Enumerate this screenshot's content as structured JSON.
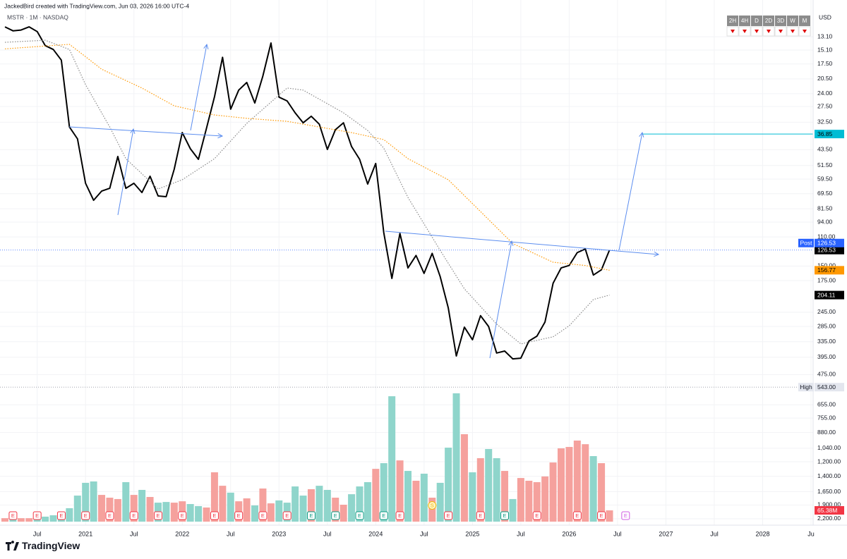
{
  "chart_data": {
    "type": "line",
    "header": "JackedBird created with TradingView.com, Jun 03, 2026 16:00 UTC-4",
    "symbol": "MSTR · 1M · NASDAQ",
    "currency": "USD",
    "brand": "TradingView",
    "timeframes": [
      "2H",
      "4H",
      "D",
      "2D",
      "3D",
      "W",
      "M"
    ],
    "x": [
      "2020-03",
      "2020-04",
      "2020-05",
      "2020-06",
      "2020-07",
      "2020-08",
      "2020-09",
      "2020-10",
      "2020-11",
      "2020-12",
      "2021-01",
      "2021-02",
      "2021-03",
      "2021-04",
      "2021-05",
      "2021-06",
      "2021-07",
      "2021-08",
      "2021-09",
      "2021-10",
      "2021-11",
      "2021-12",
      "2022-01",
      "2022-02",
      "2022-03",
      "2022-04",
      "2022-05",
      "2022-06",
      "2022-07",
      "2022-08",
      "2022-09",
      "2022-10",
      "2022-11",
      "2022-12",
      "2023-01",
      "2023-02",
      "2023-03",
      "2023-04",
      "2023-05",
      "2023-06",
      "2023-07",
      "2023-08",
      "2023-09",
      "2023-10",
      "2023-11",
      "2023-12",
      "2024-01",
      "2024-02",
      "2024-03",
      "2024-04",
      "2024-05",
      "2024-06",
      "2024-07",
      "2024-08",
      "2024-09",
      "2024-10",
      "2024-11",
      "2024-12",
      "2025-01",
      "2025-02",
      "2025-03",
      "2025-04",
      "2025-05",
      "2025-06",
      "2025-07",
      "2025-08",
      "2025-09",
      "2025-10",
      "2025-11",
      "2025-12",
      "2026-01",
      "2026-02",
      "2026-03",
      "2026-04",
      "2026-05",
      "2026-06"
    ],
    "series": [
      {
        "color": "#000000",
        "style": "solid",
        "values": [
          11.8,
          12.3,
          12.2,
          11.8,
          12.4,
          14.4,
          15.0,
          16.8,
          34.2,
          38.8,
          62.2,
          74.5,
          67.6,
          65.6,
          46.8,
          65.6,
          62.2,
          68.6,
          57.7,
          71.2,
          71.7,
          53.6,
          36.3,
          43.1,
          48.2,
          34.7,
          24.8,
          16.3,
          28.3,
          23.1,
          21.3,
          26.5,
          19.9,
          14.0,
          24.9,
          25.9,
          29.4,
          32.7,
          30.5,
          33.2,
          43.4,
          35.2,
          32.7,
          42.1,
          48.2,
          62.7,
          50.4,
          105,
          171,
          106,
          153,
          134,
          162,
          131,
          168,
          234,
          390,
          287,
          328,
          254,
          285,
          378,
          370,
          402,
          399,
          333,
          316,
          272,
          180,
          153,
          149,
          130,
          125,
          165,
          156,
          126.53
        ]
      },
      {
        "color": "#ff9800",
        "style": "dotted",
        "x": [
          "2020-03",
          "2020-11",
          "2021-01",
          "2021-03",
          "2021-08",
          "2021-12",
          "2022-05",
          "2022-09",
          "2023-02",
          "2023-06",
          "2023-10",
          "2024-02",
          "2024-05",
          "2024-10",
          "2025-02",
          "2025-06",
          "2025-11",
          "2026-03",
          "2026-06"
        ],
        "values": [
          14.9,
          14.2,
          16.2,
          18.5,
          22.6,
          27.3,
          30.1,
          31.2,
          32.2,
          34.2,
          36.3,
          39.1,
          47.9,
          59.9,
          84.0,
          118,
          144,
          149,
          156.77
        ]
      },
      {
        "color": "#8a8a8a",
        "style": "dotted",
        "x": [
          "2020-03",
          "2020-08",
          "2020-11",
          "2021-01",
          "2021-04",
          "2021-06",
          "2021-10",
          "2022-01",
          "2022-05",
          "2022-09",
          "2023-02",
          "2023-04",
          "2023-09",
          "2023-12",
          "2024-02",
          "2024-05",
          "2024-09",
          "2024-12",
          "2025-04",
          "2025-07",
          "2025-11",
          "2026-01",
          "2026-04",
          "2026-06"
        ],
        "values": [
          13.9,
          13.6,
          15.0,
          21.8,
          34.2,
          47.9,
          66.1,
          59.9,
          47.9,
          32.9,
          22.6,
          23.1,
          29.4,
          35.5,
          42.8,
          72.3,
          127,
          191,
          278,
          343,
          318,
          283,
          214,
          204.11
        ]
      }
    ],
    "post_label": "Post",
    "post_color": "#2962ff",
    "target": {
      "value": 36.85,
      "color": "#00bcd4"
    },
    "high": {
      "name": "High",
      "value": 543,
      "label": "543.00"
    },
    "volume": {
      "up_color": "#8fd5cb",
      "down_color": "#f5a19d",
      "values": [
        20,
        20,
        20,
        20,
        29,
        29,
        37,
        53,
        78,
        151,
        225,
        233,
        155,
        139,
        131,
        229,
        155,
        184,
        143,
        110,
        114,
        110,
        118,
        102,
        90,
        82,
        286,
        208,
        168,
        118,
        135,
        94,
        192,
        106,
        123,
        110,
        204,
        151,
        188,
        208,
        184,
        139,
        98,
        159,
        204,
        229,
        306,
        339,
        727,
        355,
        294,
        237,
        278,
        139,
        225,
        429,
        744,
        507,
        286,
        368,
        421,
        368,
        294,
        131,
        253,
        237,
        229,
        262,
        343,
        425,
        433,
        470,
        449,
        380,
        339,
        65.38
      ],
      "last_label": "65.38M",
      "label_color": "#f23645"
    },
    "events": [
      {
        "x": "2020-04",
        "label": "E",
        "color": "#f23645"
      },
      {
        "x": "2020-07",
        "label": "E",
        "color": "#f23645"
      },
      {
        "x": "2020-10",
        "label": "E",
        "color": "#f23645"
      },
      {
        "x": "2021-01",
        "label": "E",
        "color": "#f23645"
      },
      {
        "x": "2021-04",
        "label": "E",
        "color": "#f23645"
      },
      {
        "x": "2021-07",
        "label": "E",
        "color": "#f23645"
      },
      {
        "x": "2021-10",
        "label": "E",
        "color": "#f23645"
      },
      {
        "x": "2022-01",
        "label": "E",
        "color": "#f23645"
      },
      {
        "x": "2022-05",
        "label": "E",
        "color": "#f23645"
      },
      {
        "x": "2022-08",
        "label": "E",
        "color": "#f23645"
      },
      {
        "x": "2022-11",
        "label": "E",
        "color": "#f23645"
      },
      {
        "x": "2023-02",
        "label": "E",
        "color": "#f23645"
      },
      {
        "x": "2023-05",
        "label": "E",
        "color": "#089981"
      },
      {
        "x": "2023-08",
        "label": "E",
        "color": "#089981"
      },
      {
        "x": "2023-11",
        "label": "E",
        "color": "#089981"
      },
      {
        "x": "2024-02",
        "label": "E",
        "color": "#089981"
      },
      {
        "x": "2024-04",
        "label": "E",
        "color": "#f23645"
      },
      {
        "x": "2024-08",
        "label": "S",
        "color": "#f0b90b",
        "shape": "circle"
      },
      {
        "x": "2024-10",
        "label": "E",
        "color": "#f23645"
      },
      {
        "x": "2025-02",
        "label": "E",
        "color": "#f23645"
      },
      {
        "x": "2025-05",
        "label": "E",
        "color": "#089981"
      },
      {
        "x": "2025-09",
        "label": "E",
        "color": "#f23645"
      },
      {
        "x": "2026-02",
        "label": "E",
        "color": "#f23645"
      },
      {
        "x": "2026-05",
        "label": "E",
        "color": "#f23645"
      },
      {
        "x": "2026-08",
        "label": "E",
        "color": "#d05ce3"
      }
    ],
    "xlim": [
      "2020-03",
      "2028-07"
    ],
    "xticks": [
      {
        "value": "2020-07",
        "label": "Jul"
      },
      {
        "value": "2021-01",
        "label": "2021"
      },
      {
        "value": "2021-07",
        "label": "Jul"
      },
      {
        "value": "2022-01",
        "label": "2022"
      },
      {
        "value": "2022-07",
        "label": "Jul"
      },
      {
        "value": "2023-01",
        "label": "2023"
      },
      {
        "value": "2023-07",
        "label": "Jul"
      },
      {
        "value": "2024-01",
        "label": "2024"
      },
      {
        "value": "2024-07",
        "label": "Jul"
      },
      {
        "value": "2025-01",
        "label": "2025"
      },
      {
        "value": "2025-07",
        "label": "Jul"
      },
      {
        "value": "2026-01",
        "label": "2026"
      },
      {
        "value": "2026-07",
        "label": "Jul"
      },
      {
        "value": "2027-01",
        "label": "2027"
      },
      {
        "value": "2027-07",
        "label": "Jul"
      },
      {
        "value": "2028-01",
        "label": "2028"
      },
      {
        "value": "2028-07",
        "label": "Ju"
      }
    ],
    "ylim": [
      10.3,
      2355
    ],
    "log": true,
    "inverted": true,
    "grid": true,
    "yticks": [
      {
        "value": 13.1,
        "label": "13.10"
      },
      {
        "value": 15.1,
        "label": "15.10"
      },
      {
        "value": 17.5,
        "label": "17.50"
      },
      {
        "value": 20.5,
        "label": "20.50"
      },
      {
        "value": 24,
        "label": "24.00"
      },
      {
        "value": 27.5,
        "label": "27.50"
      },
      {
        "value": 32.5,
        "label": "32.50"
      },
      {
        "value": 43.5,
        "label": "43.50"
      },
      {
        "value": 51.5,
        "label": "51.50"
      },
      {
        "value": 59.5,
        "label": "59.50"
      },
      {
        "value": 69.5,
        "label": "69.50"
      },
      {
        "value": 81.5,
        "label": "81.50"
      },
      {
        "value": 94,
        "label": "94.00"
      },
      {
        "value": 110,
        "label": "110.00"
      },
      {
        "value": 150,
        "label": "150.00"
      },
      {
        "value": 175,
        "label": "175.00"
      },
      {
        "value": 245,
        "label": "245.00"
      },
      {
        "value": 285,
        "label": "285.00"
      },
      {
        "value": 335,
        "label": "335.00"
      },
      {
        "value": 395,
        "label": "395.00"
      },
      {
        "value": 475,
        "label": "475.00"
      },
      {
        "value": 655,
        "label": "655.00"
      },
      {
        "value": 755,
        "label": "755.00"
      },
      {
        "value": 880,
        "label": "880.00"
      },
      {
        "value": 1040,
        "label": "1,040.00"
      },
      {
        "value": 1200,
        "label": "1,200.00"
      },
      {
        "value": 1400,
        "label": "1,400.00"
      },
      {
        "value": 1650,
        "label": "1,650.00"
      },
      {
        "value": 1900,
        "label": "1,900.00"
      },
      {
        "value": 2200,
        "label": "2,200.00"
      }
    ]
  }
}
